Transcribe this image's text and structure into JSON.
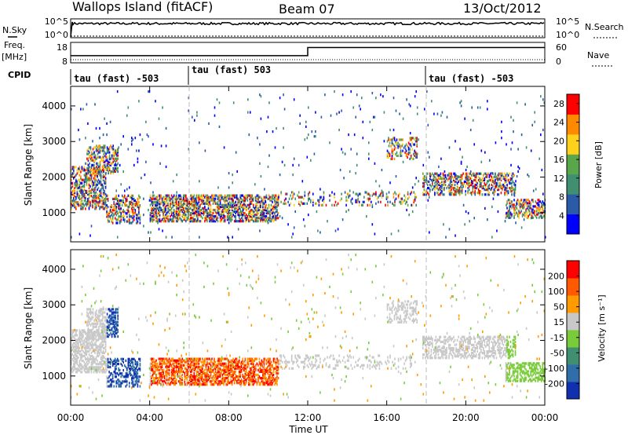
{
  "header": {
    "station": "Wallops Island (fitACF)",
    "beam": "Beam 07",
    "date": "13/Oct/2012"
  },
  "sidepanel": {
    "nsky": "N.Sky",
    "freq": "Freq.",
    "freq_unit": "[MHz]",
    "cpid": "CPID",
    "nsearch": "N.Search",
    "nave": "Nave"
  },
  "cpid_labels": [
    {
      "text": "tau (fast) -503",
      "start_hour": 0
    },
    {
      "text": "tau (fast) 503",
      "start_hour": 6
    },
    {
      "text": "tau (fast) -503",
      "start_hour": 18
    }
  ],
  "chart_data": [
    {
      "type": "line",
      "name": "noise",
      "left_ticks": [
        "10^5",
        "10^0"
      ],
      "right_ticks": [
        "10^5",
        "10^0"
      ],
      "level": 0.75
    },
    {
      "type": "line",
      "name": "frequency",
      "left_ticks": [
        "18",
        "8"
      ],
      "right_ticks": [
        "60",
        "0"
      ],
      "freq_points": [
        [
          0,
          0.35
        ],
        [
          12,
          0.35
        ],
        [
          12,
          0.75
        ],
        [
          24,
          0.75
        ]
      ]
    },
    {
      "type": "heatmap",
      "name": "power",
      "xlabel": "",
      "ylabel": "Slant Range [km]",
      "xlim": [
        0,
        24
      ],
      "ylim": [
        180,
        4550
      ],
      "yticks": [
        1000,
        2000,
        3000,
        4000
      ],
      "colorbar": {
        "label": "Power [dB]",
        "ticks": [
          4,
          8,
          12,
          16,
          20,
          24,
          28
        ],
        "range": [
          0,
          30
        ],
        "colors": [
          "#0000ff",
          "#2a5aa8",
          "#3f8f70",
          "#5aa64a",
          "#ffd11a",
          "#ff8a00",
          "#ff0000"
        ]
      }
    },
    {
      "type": "heatmap",
      "name": "velocity",
      "xlabel": "Time UT",
      "ylabel": "Slant Range [km]",
      "xlim": [
        0,
        24
      ],
      "ylim": [
        180,
        4550
      ],
      "yticks": [
        1000,
        2000,
        3000,
        4000
      ],
      "xticks": [
        "00:00",
        "04:00",
        "08:00",
        "12:00",
        "16:00",
        "20:00",
        "00:00"
      ],
      "colorbar": {
        "label": "Velocity [m s⁻¹]",
        "ticks": [
          200,
          100,
          50,
          15,
          -15,
          -50,
          -100,
          -200
        ],
        "colors": [
          "#1030b0",
          "#2f6ea8",
          "#3f8f70",
          "#7acb3a",
          "#c8c8c8",
          "#ff9a00",
          "#ff5a00",
          "#ff0000"
        ]
      }
    }
  ]
}
